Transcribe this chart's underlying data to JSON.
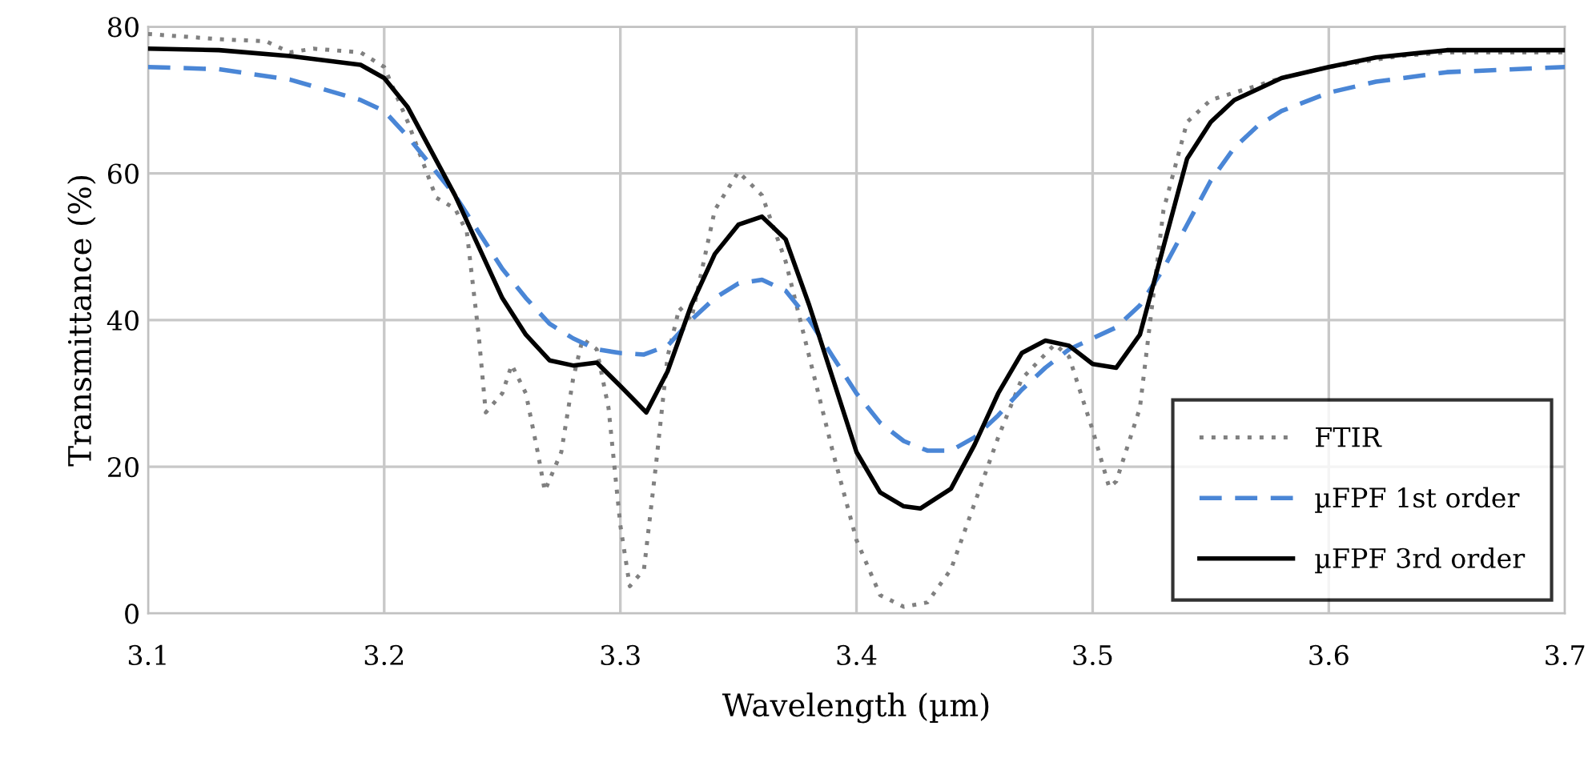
{
  "chart_data": {
    "type": "line",
    "xlabel": "Wavelength (µm)",
    "ylabel": "Transmittance (%)",
    "xlim": [
      3.1,
      3.7
    ],
    "xticks": [
      3.1,
      3.2,
      3.3,
      3.4,
      3.5,
      3.6,
      3.7
    ],
    "ylim": [
      0,
      80
    ],
    "yticks": [
      0,
      20,
      40,
      60,
      80
    ],
    "grid": true,
    "legend": "bottom right",
    "series": [
      {
        "name": "FTIR",
        "color": "#808080",
        "line_style": "dotted",
        "x": [
          3.1,
          3.13,
          3.15,
          3.16,
          3.17,
          3.19,
          3.2,
          3.21,
          3.222,
          3.23,
          3.235,
          3.24,
          3.243,
          3.25,
          3.254,
          3.26,
          3.265,
          3.268,
          3.275,
          3.28,
          3.284,
          3.29,
          3.295,
          3.3,
          3.304,
          3.31,
          3.315,
          3.32,
          3.325,
          3.33,
          3.34,
          3.35,
          3.36,
          3.37,
          3.38,
          3.39,
          3.4,
          3.41,
          3.42,
          3.43,
          3.44,
          3.45,
          3.46,
          3.47,
          3.484,
          3.49,
          3.5,
          3.507,
          3.51,
          3.52,
          3.53,
          3.54,
          3.55,
          3.58,
          3.6,
          3.63,
          3.65,
          3.7
        ],
        "values": [
          79,
          78.3,
          78,
          76.5,
          77,
          76.5,
          74.5,
          67,
          56.7,
          55.2,
          52,
          38,
          27.4,
          30,
          33.9,
          30,
          22,
          16.7,
          22,
          32,
          37.4,
          36,
          28,
          12,
          3.7,
          6,
          20,
          35,
          41.7,
          40,
          55,
          60.2,
          57,
          48,
          35,
          22,
          10,
          2.5,
          0.9,
          1.5,
          6,
          15,
          24,
          32,
          36.7,
          35,
          25,
          17.2,
          18,
          28,
          55,
          67,
          70,
          73,
          74.5,
          76,
          76.5,
          76.5
        ]
      },
      {
        "name": "µFPF 1st order",
        "color": "#4a86d6",
        "line_style": "dashed",
        "x": [
          3.1,
          3.13,
          3.16,
          3.19,
          3.2,
          3.21,
          3.22,
          3.23,
          3.24,
          3.25,
          3.26,
          3.27,
          3.28,
          3.29,
          3.3,
          3.31,
          3.32,
          3.33,
          3.34,
          3.35,
          3.36,
          3.37,
          3.38,
          3.39,
          3.4,
          3.41,
          3.42,
          3.43,
          3.44,
          3.45,
          3.46,
          3.47,
          3.48,
          3.49,
          3.5,
          3.51,
          3.52,
          3.53,
          3.54,
          3.55,
          3.56,
          3.57,
          3.58,
          3.6,
          3.62,
          3.65,
          3.7
        ],
        "values": [
          74.5,
          74.2,
          72.8,
          70,
          68.5,
          65,
          61,
          57,
          52,
          47,
          43,
          39.5,
          37.5,
          36,
          35.5,
          35.3,
          36.5,
          40,
          43,
          45,
          45.5,
          44,
          40,
          35,
          30,
          26,
          23.5,
          22.2,
          22.2,
          24,
          27,
          30.5,
          33.5,
          36,
          37.5,
          39,
          42,
          47,
          53,
          59,
          63.5,
          66.5,
          68.5,
          71,
          72.5,
          73.8,
          74.5
        ]
      },
      {
        "name": "µFPF 3rd order",
        "color": "#000000",
        "line_style": "solid",
        "x": [
          3.1,
          3.13,
          3.16,
          3.19,
          3.2,
          3.21,
          3.22,
          3.23,
          3.24,
          3.25,
          3.26,
          3.27,
          3.28,
          3.29,
          3.3,
          3.311,
          3.32,
          3.33,
          3.34,
          3.35,
          3.36,
          3.37,
          3.38,
          3.39,
          3.4,
          3.41,
          3.42,
          3.427,
          3.44,
          3.45,
          3.46,
          3.47,
          3.48,
          3.49,
          3.5,
          3.51,
          3.52,
          3.53,
          3.54,
          3.55,
          3.56,
          3.58,
          3.6,
          3.62,
          3.65,
          3.7
        ],
        "values": [
          77,
          76.8,
          76,
          74.8,
          73,
          69,
          63,
          57,
          50,
          43,
          38,
          34.5,
          33.8,
          34.2,
          31,
          27.4,
          33,
          42,
          49,
          53,
          54.1,
          51,
          42,
          32,
          22,
          16.5,
          14.6,
          14.3,
          17,
          23,
          30,
          35.5,
          37.2,
          36.5,
          34,
          33.5,
          38,
          50,
          62,
          67,
          70,
          73,
          74.5,
          75.8,
          76.8,
          76.8
        ]
      }
    ]
  }
}
